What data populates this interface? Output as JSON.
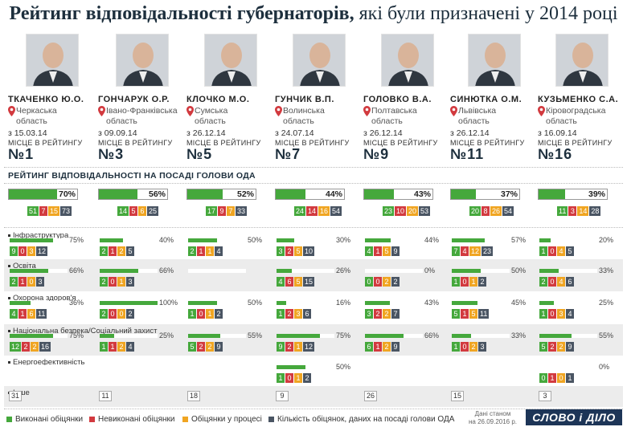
{
  "title": {
    "bold": "Рейтинг відповідальності губернаторів,",
    "rest": " які були призначені у 2014 році"
  },
  "rating_title": "РЕЙТИНГ ВІДПОВІДАЛЬНОСТІ НА ПОСАДІ ГОЛОВИ ОДА",
  "place_label": "МІСЦЕ В РЕЙТИНГУ",
  "categories": [
    "Інфраструктура",
    "Освіта",
    "Охорона здоров'я",
    "Національна безпека/Соціальний захист",
    "Енергоефективність",
    "Інше"
  ],
  "governors": [
    {
      "name": "ТКАЧЕНКО Ю.О.",
      "region1": "Черкаська",
      "region2": "область",
      "date": "з 15.03.14",
      "place": "№1",
      "pct_label": "70%",
      "pct": 70,
      "totals": [
        "51",
        "7",
        "15",
        "73"
      ],
      "cats": [
        {
          "pct": 75,
          "label": "75%",
          "nums": [
            "9",
            "0",
            "3",
            "12"
          ]
        },
        {
          "pct": 66,
          "label": "66%",
          "nums": [
            "2",
            "1",
            "0",
            "3"
          ]
        },
        {
          "pct": 36,
          "label": "36%",
          "nums": [
            "4",
            "1",
            "6",
            "11"
          ]
        },
        {
          "pct": 75,
          "label": "75%",
          "nums": [
            "12",
            "2",
            "2",
            "16"
          ]
        },
        null
      ],
      "other": "31"
    },
    {
      "name": "ГОНЧАРУК О.Р.",
      "region1": "Івано-Франківська",
      "region2": "область",
      "date": "з 09.09.14",
      "place": "№3",
      "pct_label": "56%",
      "pct": 56,
      "totals": [
        "14",
        "5",
        "6",
        "25"
      ],
      "cats": [
        {
          "pct": 40,
          "label": "40%",
          "nums": [
            "2",
            "1",
            "2",
            "5"
          ]
        },
        {
          "pct": 66,
          "label": "66%",
          "nums": [
            "2",
            "0",
            "1",
            "3"
          ]
        },
        {
          "pct": 100,
          "label": "100%",
          "nums": [
            "2",
            "0",
            "0",
            "2"
          ]
        },
        {
          "pct": 25,
          "label": "25%",
          "nums": [
            "1",
            "1",
            "2",
            "4"
          ]
        },
        null
      ],
      "other": "11"
    },
    {
      "name": "КЛОЧКО М.О.",
      "region1": "Сумська",
      "region2": "область",
      "date": "з 26.12.14",
      "place": "№5",
      "pct_label": "52%",
      "pct": 52,
      "totals": [
        "17",
        "9",
        "7",
        "33"
      ],
      "cats": [
        {
          "pct": 50,
          "label": "50%",
          "nums": [
            "2",
            "1",
            "1",
            "4"
          ]
        },
        null,
        {
          "pct": 50,
          "label": "50%",
          "nums": [
            "1",
            "0",
            "1",
            "2"
          ]
        },
        {
          "pct": 55,
          "label": "55%",
          "nums": [
            "5",
            "2",
            "2",
            "9"
          ]
        },
        null
      ],
      "other": "18"
    },
    {
      "name": "ГУНЧИК В.П.",
      "region1": "Волинська",
      "region2": "область",
      "date": "з 24.07.14",
      "place": "№7",
      "pct_label": "44%",
      "pct": 44,
      "totals": [
        "24",
        "14",
        "16",
        "54"
      ],
      "cats": [
        {
          "pct": 30,
          "label": "30%",
          "nums": [
            "3",
            "2",
            "5",
            "10"
          ]
        },
        {
          "pct": 26,
          "label": "26%",
          "nums": [
            "4",
            "6",
            "5",
            "15"
          ]
        },
        {
          "pct": 16,
          "label": "16%",
          "nums": [
            "1",
            "2",
            "3",
            "6"
          ]
        },
        {
          "pct": 75,
          "label": "75%",
          "nums": [
            "9",
            "2",
            "1",
            "12"
          ]
        },
        {
          "pct": 50,
          "label": "50%",
          "nums": [
            "1",
            "0",
            "1",
            "2"
          ]
        }
      ],
      "other": "9"
    },
    {
      "name": "ГОЛОВКО В.А.",
      "region1": "Полтавська",
      "region2": "область",
      "date": "з 26.12.14",
      "place": "№9",
      "pct_label": "43%",
      "pct": 43,
      "totals": [
        "23",
        "10",
        "20",
        "53"
      ],
      "cats": [
        {
          "pct": 44,
          "label": "44%",
          "nums": [
            "4",
            "1",
            "5",
            "9"
          ]
        },
        {
          "pct": 0,
          "label": "0%",
          "nums": [
            "0",
            "0",
            "2",
            "2"
          ]
        },
        {
          "pct": 43,
          "label": "43%",
          "nums": [
            "3",
            "2",
            "2",
            "7"
          ]
        },
        {
          "pct": 66,
          "label": "66%",
          "nums": [
            "6",
            "1",
            "2",
            "9"
          ]
        },
        null
      ],
      "other": "26"
    },
    {
      "name": "СИНЮТКА О.М.",
      "region1": "Львівська",
      "region2": "область",
      "date": "з 26.12.14",
      "place": "№11",
      "pct_label": "37%",
      "pct": 37,
      "totals": [
        "20",
        "8",
        "26",
        "54"
      ],
      "cats": [
        {
          "pct": 57,
          "label": "57%",
          "nums": [
            "7",
            "4",
            "12",
            "23"
          ]
        },
        {
          "pct": 50,
          "label": "50%",
          "nums": [
            "1",
            "0",
            "1",
            "2"
          ]
        },
        {
          "pct": 45,
          "label": "45%",
          "nums": [
            "5",
            "1",
            "5",
            "11"
          ]
        },
        {
          "pct": 33,
          "label": "33%",
          "nums": [
            "1",
            "0",
            "2",
            "3"
          ]
        },
        null
      ],
      "other": "15"
    },
    {
      "name": "КУЗЬМЕНКО С.А.",
      "region1": "Кіровоградська",
      "region2": "область",
      "date": "з 16.09.14",
      "place": "№16",
      "pct_label": "39%",
      "pct": 39,
      "totals": [
        "11",
        "3",
        "14",
        "28"
      ],
      "cats": [
        {
          "pct": 20,
          "label": "20%",
          "nums": [
            "1",
            "0",
            "4",
            "5"
          ]
        },
        {
          "pct": 33,
          "label": "33%",
          "nums": [
            "2",
            "0",
            "4",
            "6"
          ]
        },
        {
          "pct": 25,
          "label": "25%",
          "nums": [
            "1",
            "0",
            "3",
            "4"
          ]
        },
        {
          "pct": 55,
          "label": "55%",
          "nums": [
            "5",
            "2",
            "2",
            "9"
          ]
        },
        {
          "pct": 0,
          "label": "0%",
          "nums": [
            "0",
            "1",
            "0",
            "1"
          ]
        }
      ],
      "other": "3"
    }
  ],
  "legend": [
    "Виконані обіцянки",
    "Невиконані обіцянки",
    "Обіцянки у процесі",
    "Кількість обіцянок, даних на посаді голови ОДА"
  ],
  "colors": {
    "done": "#45a83c",
    "failed": "#d23a3f",
    "progress": "#f0a522",
    "total": "#4a5563"
  },
  "stamp": [
    "Дані станом",
    "на 26.09.2016 р."
  ],
  "logo": "СЛОВО і ДІЛО"
}
